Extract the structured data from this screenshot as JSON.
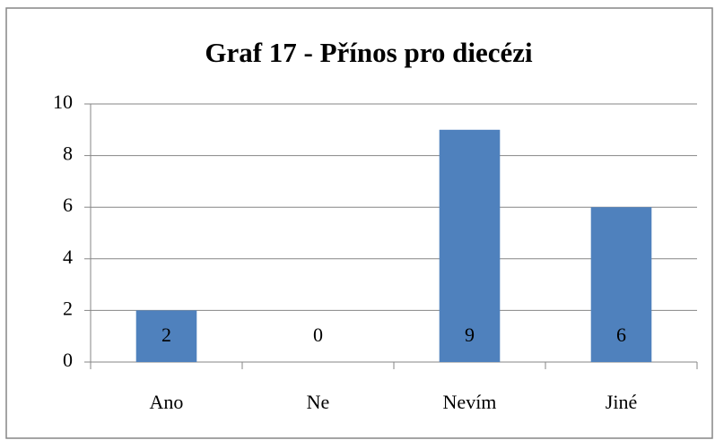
{
  "chart_data": {
    "type": "bar",
    "title": "Graf 17 - Přínos pro diecézi",
    "categories": [
      "Ano",
      "Ne",
      "Nevím",
      "Jiné"
    ],
    "values": [
      2,
      0,
      9,
      6
    ],
    "color": "#4f81bd",
    "ylim": [
      0,
      10
    ],
    "yticks": [
      0,
      2,
      4,
      6,
      8,
      10
    ],
    "grid": true
  }
}
